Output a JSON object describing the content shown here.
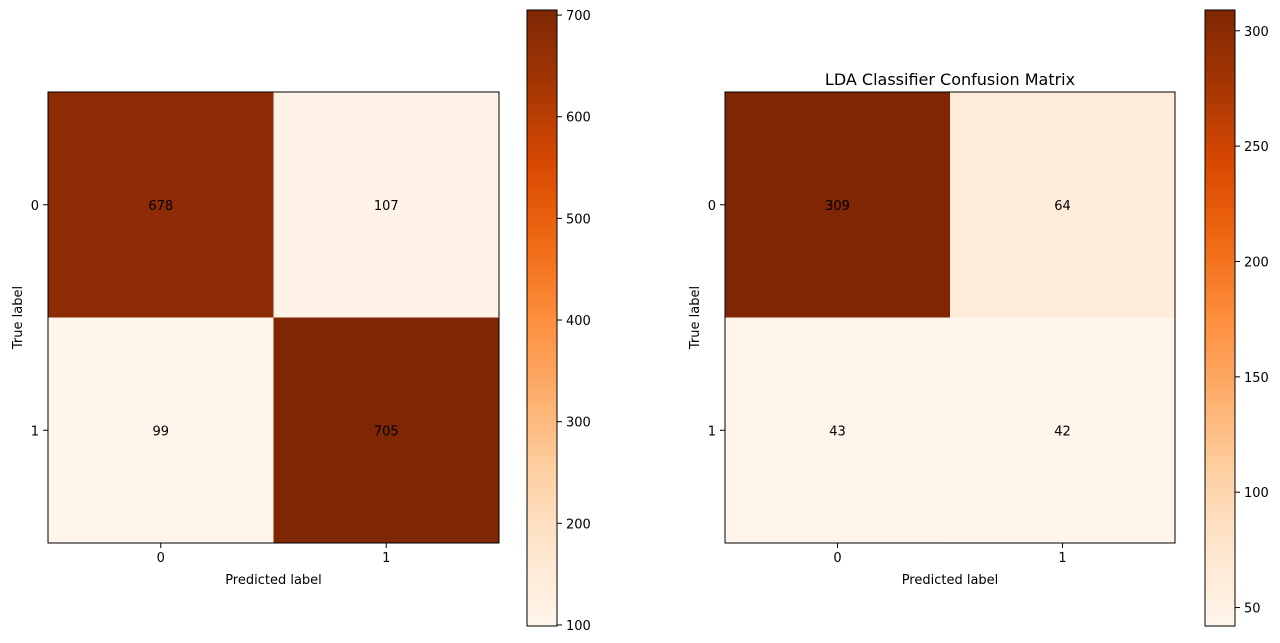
{
  "chart_data": [
    {
      "type": "heatmap",
      "title": "",
      "xlabel": "Predicted label",
      "ylabel": "True label",
      "x_categories": [
        "0",
        "1"
      ],
      "y_categories": [
        "0",
        "1"
      ],
      "matrix": [
        [
          678,
          107
        ],
        [
          99,
          705
        ]
      ],
      "colormap": "Oranges",
      "colorbar": {
        "range": [
          99,
          705
        ],
        "ticks": [
          100,
          200,
          300,
          400,
          500,
          600,
          700
        ]
      },
      "grid": false
    },
    {
      "type": "heatmap",
      "title": "LDA Classifier Confusion Matrix",
      "xlabel": "Predicted label",
      "ylabel": "True label",
      "x_categories": [
        "0",
        "1"
      ],
      "y_categories": [
        "0",
        "1"
      ],
      "matrix": [
        [
          309,
          64
        ],
        [
          43,
          42
        ]
      ],
      "colormap": "Oranges",
      "colorbar": {
        "range": [
          42,
          309
        ],
        "ticks": [
          50,
          100,
          150,
          200,
          250,
          300
        ]
      },
      "grid": false
    }
  ]
}
